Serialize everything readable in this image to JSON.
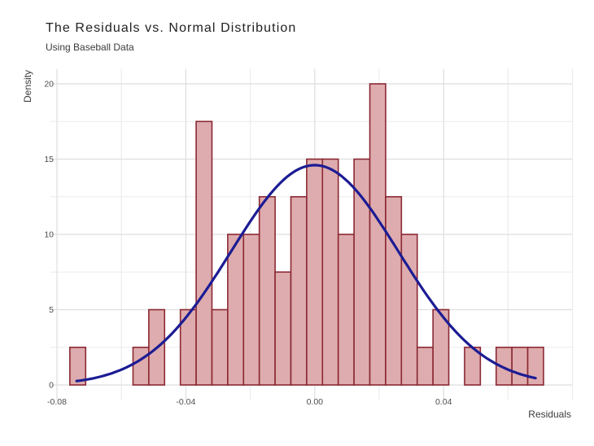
{
  "chart_data": {
    "type": "histogram",
    "title": "The Residuals vs. Normal Distribution",
    "subtitle": "Using Baseball Data",
    "xlabel": "Residuals",
    "ylabel": "Density",
    "xlim": [
      -0.082,
      0.0798
    ],
    "ylim": [
      -1,
      21
    ],
    "x_ticks": [
      {
        "value": -0.08,
        "label": "-0.08"
      },
      {
        "value": -0.04,
        "label": "-0.04"
      },
      {
        "value": 0.0,
        "label": "0.00"
      },
      {
        "value": 0.04,
        "label": "0.04"
      }
    ],
    "x_minor_gridlines": [
      -0.06,
      -0.02,
      0.02,
      0.06,
      0.08
    ],
    "y_ticks": [
      {
        "value": 0,
        "label": "0"
      },
      {
        "value": 5,
        "label": "5"
      },
      {
        "value": 10,
        "label": "10"
      },
      {
        "value": 15,
        "label": "15"
      },
      {
        "value": 20,
        "label": "20"
      }
    ],
    "y_minor_gridlines": [
      2.5,
      7.5,
      12.5,
      17.5
    ],
    "histogram": {
      "bin_start": -0.076,
      "bin_width": 0.0049,
      "densities": [
        2.5,
        0,
        0,
        0,
        2.5,
        5,
        0,
        5,
        17.5,
        5,
        10,
        10,
        12.5,
        7.5,
        12.5,
        15,
        15,
        10,
        15,
        20,
        12.5,
        10,
        2.5,
        5,
        0,
        2.5,
        0,
        2.5,
        2.5,
        2.5
      ],
      "fill_color": "#deacae",
      "border_color": "#8b2833"
    },
    "normal_curve": {
      "mean": 0.0,
      "sd": 0.026,
      "peak_density": 14.6,
      "x_start": -0.0739,
      "x_end": 0.0685,
      "color": "#1c1c94"
    },
    "grid": {
      "major_color": "#dedede",
      "minor_color": "#ebebeb"
    },
    "tick_label_color": "#4d4d4d"
  }
}
